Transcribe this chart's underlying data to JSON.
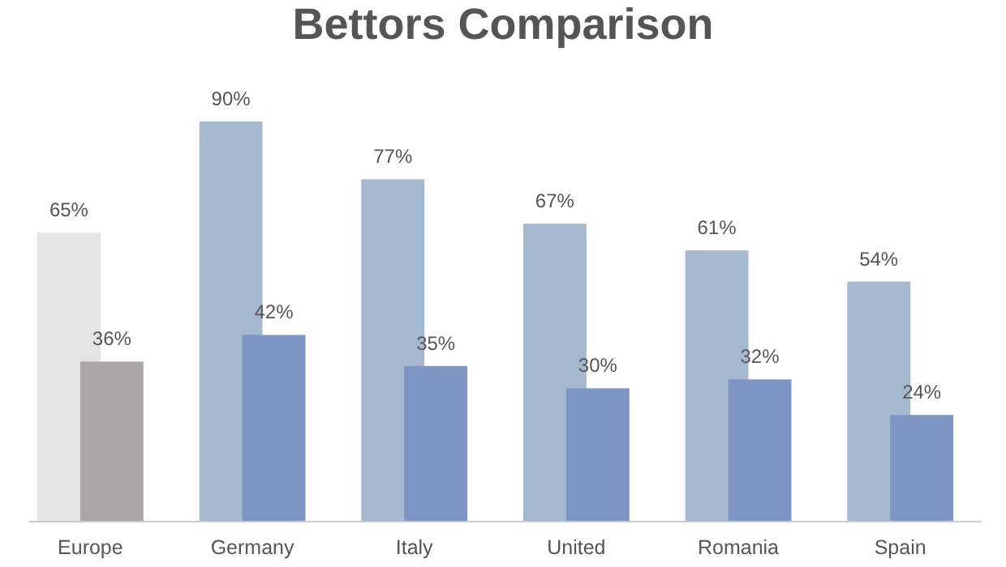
{
  "chart_data": {
    "type": "bar",
    "title": "Bettors Comparison",
    "categories": [
      "Europe",
      "Germany",
      "Italy",
      "United",
      "Romania",
      "Spain"
    ],
    "series": [
      {
        "colors": [
          "#e4e4e4",
          "#a6b8d0",
          "#a6b8d0",
          "#a6b8d0",
          "#a6b8d0",
          "#a6b8d0"
        ],
        "values": [
          65,
          90,
          77,
          67,
          61,
          54
        ],
        "value_labels": [
          "65%",
          "90%",
          "77%",
          "67%",
          "61%",
          "54%"
        ]
      },
      {
        "colors": [
          "#aaa6a6",
          "#7e96c4",
          "#7e96c4",
          "#7e96c4",
          "#7e96c4",
          "#7e96c4"
        ],
        "values": [
          36,
          42,
          35,
          30,
          32,
          24
        ],
        "value_labels": [
          "36%",
          "42%",
          "35%",
          "30%",
          "32%",
          "24%"
        ]
      }
    ]
  }
}
